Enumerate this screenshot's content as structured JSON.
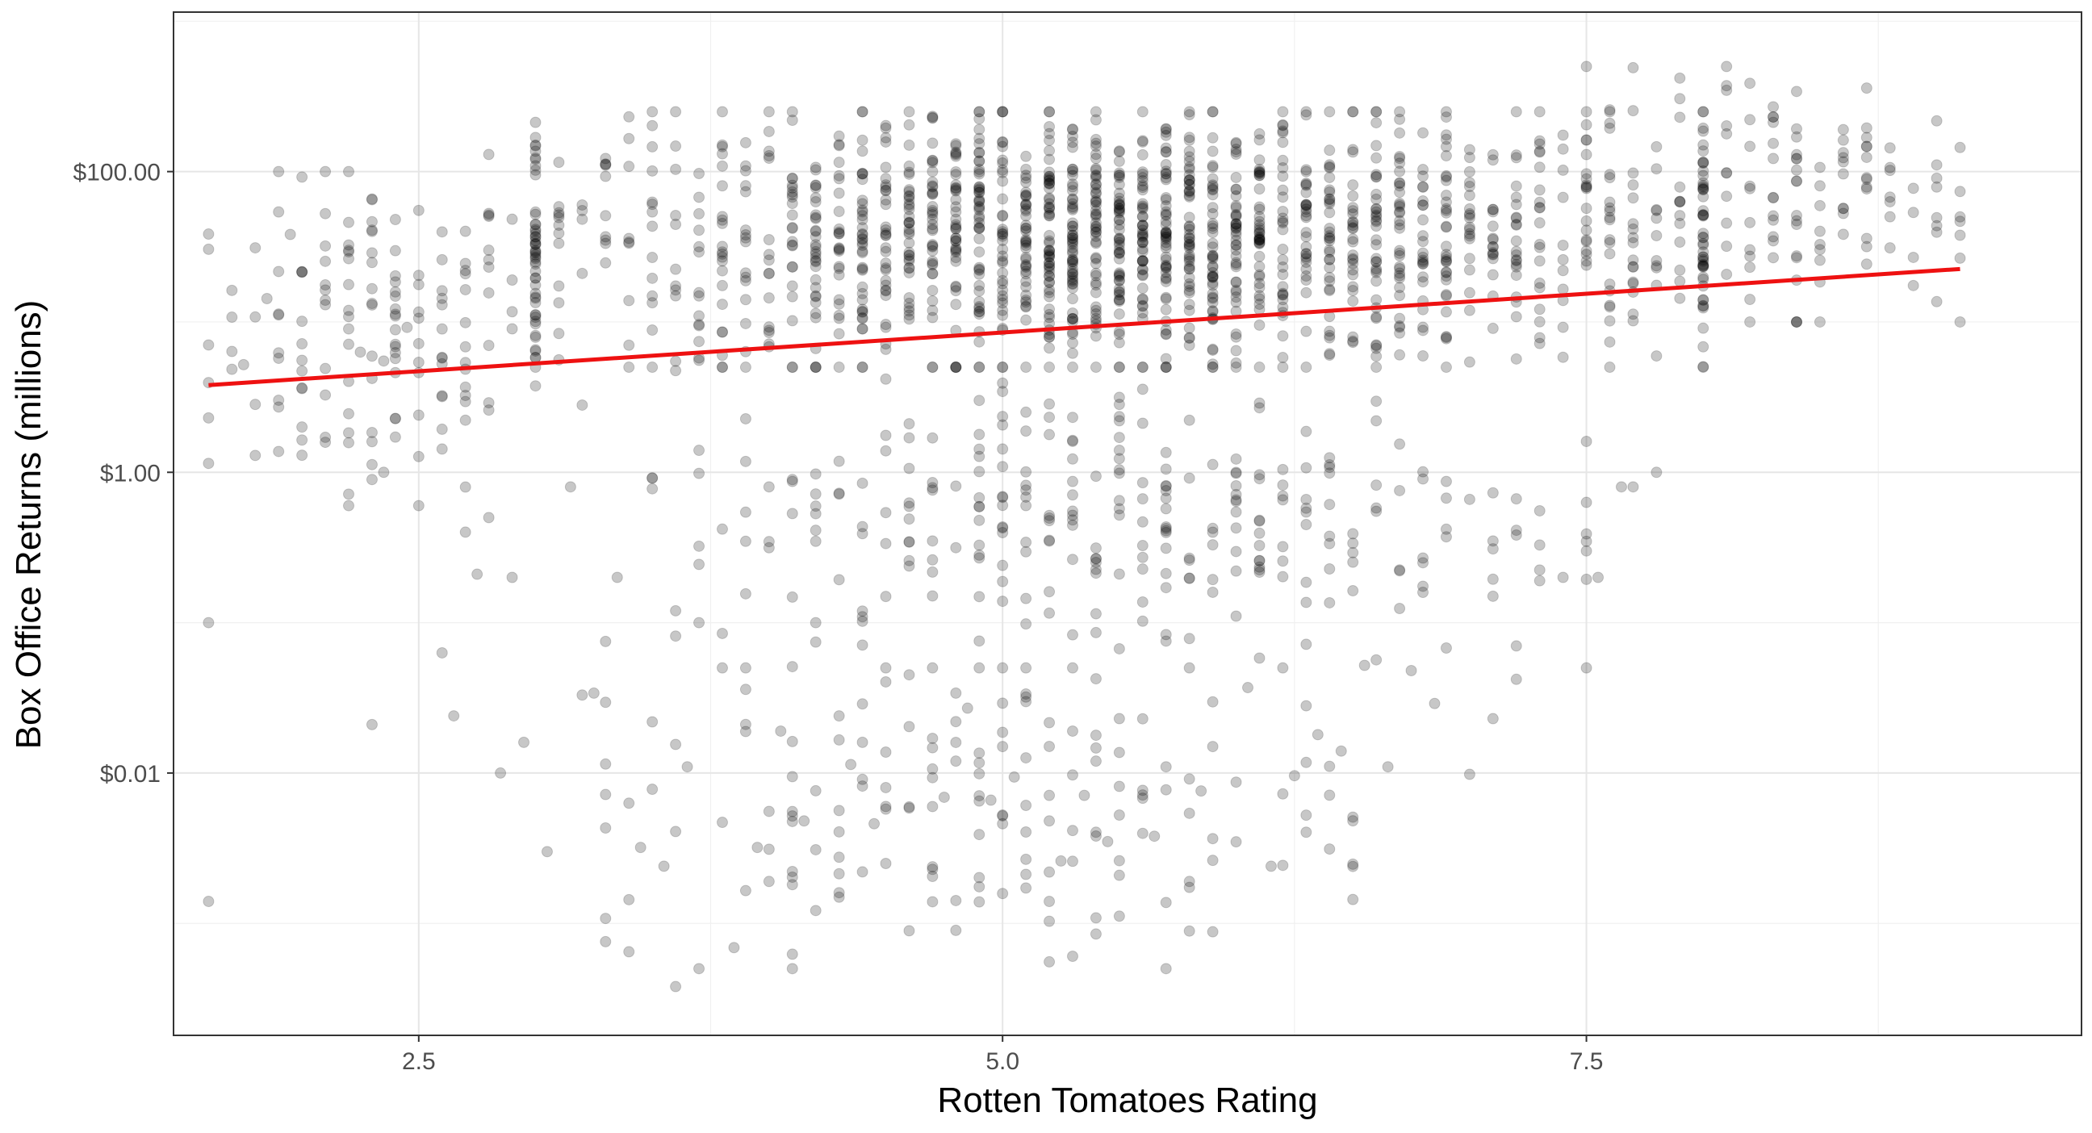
{
  "chart_data": {
    "type": "scatter",
    "title": "",
    "xlabel": "Rotten Tomatoes Rating",
    "ylabel": "Box Office Returns (millions)",
    "x_scale": "linear",
    "y_scale": "log10",
    "xlim": [
      1.45,
      9.62
    ],
    "ylim": [
      0.00018,
      1150
    ],
    "x_ticks": [
      {
        "value": 2.5,
        "label": "2.5"
      },
      {
        "value": 5.0,
        "label": "5.0"
      },
      {
        "value": 7.5,
        "label": "7.5"
      }
    ],
    "y_ticks": [
      {
        "value": 0.01,
        "label": "$0.01"
      },
      {
        "value": 1,
        "label": "$1.00"
      },
      {
        "value": 100,
        "label": "$100.00"
      }
    ],
    "grid": true,
    "legend": "none",
    "point_color": "#000000",
    "point_alpha": 0.22,
    "fit_line": {
      "color": "#ee1111",
      "x": [
        1.6,
        9.1
      ],
      "y": [
        3.8,
        22.5
      ]
    },
    "cluster_summary": [
      {
        "x_range": [
          1.6,
          3.0
        ],
        "y_range": [
          0.6,
          100
        ],
        "density": "low"
      },
      {
        "x_range": [
          3.0,
          8.0
        ],
        "y_range": [
          5,
          250
        ],
        "density": "high"
      },
      {
        "x_range": [
          3.5,
          7.5
        ],
        "y_range": [
          0.05,
          5
        ],
        "density": "medium"
      },
      {
        "x_range": [
          3.3,
          6.5
        ],
        "y_range": [
          0.0005,
          0.05
        ],
        "density": "low"
      },
      {
        "x_range": [
          7.5,
          9.1
        ],
        "y_range": [
          10,
          500
        ],
        "density": "low"
      }
    ],
    "series": [
      {
        "points": [
          [
            1.6,
            2.3
          ],
          [
            1.6,
            0.1
          ],
          [
            1.6,
            0.0014
          ],
          [
            1.75,
            5.2
          ],
          [
            1.85,
            14.3
          ],
          [
            1.95,
            38.2
          ],
          [
            2.0,
            10.1
          ],
          [
            2.0,
            2.0
          ],
          [
            2.1,
            32.0
          ],
          [
            2.2,
            7.1
          ],
          [
            2.25,
            6.3
          ],
          [
            2.3,
            40.0
          ],
          [
            2.35,
            5.5
          ],
          [
            2.4,
            48.0
          ],
          [
            2.45,
            9.2
          ],
          [
            2.5,
            4.6
          ],
          [
            2.3,
            0.021
          ],
          [
            2.3,
            1.6
          ],
          [
            2.35,
            1.0
          ],
          [
            2.6,
            0.063
          ],
          [
            2.65,
            0.024
          ],
          [
            2.7,
            0.4
          ],
          [
            2.75,
            0.21
          ],
          [
            2.8,
            0.5
          ],
          [
            2.85,
            0.01
          ],
          [
            2.9,
            0.2
          ],
          [
            2.95,
            0.016
          ],
          [
            3.05,
            0.003
          ],
          [
            3.15,
            0.8
          ],
          [
            3.2,
            0.033
          ],
          [
            3.25,
            0.034
          ],
          [
            3.3,
            0.075
          ],
          [
            2.6,
            13.0
          ],
          [
            2.7,
            22.0
          ],
          [
            2.8,
            30.0
          ],
          [
            2.9,
            19.0
          ],
          [
            3.0,
            27.0
          ],
          [
            3.1,
            44.0
          ],
          [
            3.2,
            60.0
          ],
          [
            3.3,
            35.0
          ],
          [
            2.8,
            130.0
          ],
          [
            2.9,
            9.0
          ],
          [
            3.0,
            150.0
          ],
          [
            3.1,
            5.6
          ],
          [
            3.2,
            2.8
          ],
          [
            3.35,
            0.2
          ],
          [
            3.4,
            0.0063
          ],
          [
            3.45,
            0.0032
          ],
          [
            3.5,
            0.0078
          ],
          [
            3.55,
            0.0024
          ],
          [
            3.6,
            0.00038
          ],
          [
            3.6,
            0.12
          ],
          [
            3.65,
            0.011
          ],
          [
            3.7,
            0.1
          ],
          [
            3.8,
            0.0047
          ],
          [
            3.85,
            0.00069
          ],
          [
            3.9,
            0.036
          ],
          [
            3.95,
            0.0032
          ],
          [
            4.0,
            0.0019
          ],
          [
            4.05,
            0.019
          ],
          [
            4.1,
            0.051
          ],
          [
            4.15,
            0.0048
          ],
          [
            4.2,
            0.1
          ],
          [
            4.3,
            0.0016
          ],
          [
            4.35,
            0.0114
          ],
          [
            4.4,
            0.016
          ],
          [
            4.45,
            0.0046
          ],
          [
            4.5,
            0.008
          ],
          [
            4.6,
            0.045
          ],
          [
            4.7,
            0.017
          ],
          [
            4.75,
            0.0069
          ],
          [
            4.8,
            0.012
          ],
          [
            4.85,
            0.027
          ],
          [
            4.9,
            0.0039
          ],
          [
            4.95,
            0.0066
          ],
          [
            5.0,
            0.015
          ],
          [
            5.05,
            0.0094
          ],
          [
            5.1,
            0.032
          ],
          [
            5.2,
            0.0048
          ],
          [
            5.25,
            0.0026
          ],
          [
            5.3,
            0.019
          ],
          [
            5.35,
            0.0071
          ],
          [
            5.4,
            0.012
          ],
          [
            5.45,
            0.0035
          ],
          [
            5.5,
            0.023
          ],
          [
            5.6,
            0.0068
          ],
          [
            5.65,
            0.0038
          ],
          [
            5.7,
            0.011
          ],
          [
            5.8,
            0.0019
          ],
          [
            5.85,
            0.0076
          ],
          [
            5.9,
            0.015
          ],
          [
            6.0,
            0.0087
          ],
          [
            6.05,
            0.037
          ],
          [
            6.15,
            0.0024
          ],
          [
            6.25,
            0.0096
          ],
          [
            6.3,
            0.028
          ],
          [
            6.35,
            0.018
          ],
          [
            6.45,
            0.014
          ],
          [
            6.55,
            0.052
          ],
          [
            6.65,
            0.011
          ],
          [
            6.75,
            0.048
          ],
          [
            6.85,
            0.029
          ],
          [
            7.0,
            0.0098
          ],
          [
            7.1,
            0.023
          ],
          [
            7.2,
            0.042
          ],
          [
            7.3,
            0.19
          ],
          [
            7.4,
            0.2
          ],
          [
            7.5,
            0.3
          ],
          [
            7.55,
            0.2
          ],
          [
            7.65,
            0.8
          ],
          [
            7.7,
            0.8
          ],
          [
            7.8,
            1.0
          ]
        ]
      }
    ]
  }
}
